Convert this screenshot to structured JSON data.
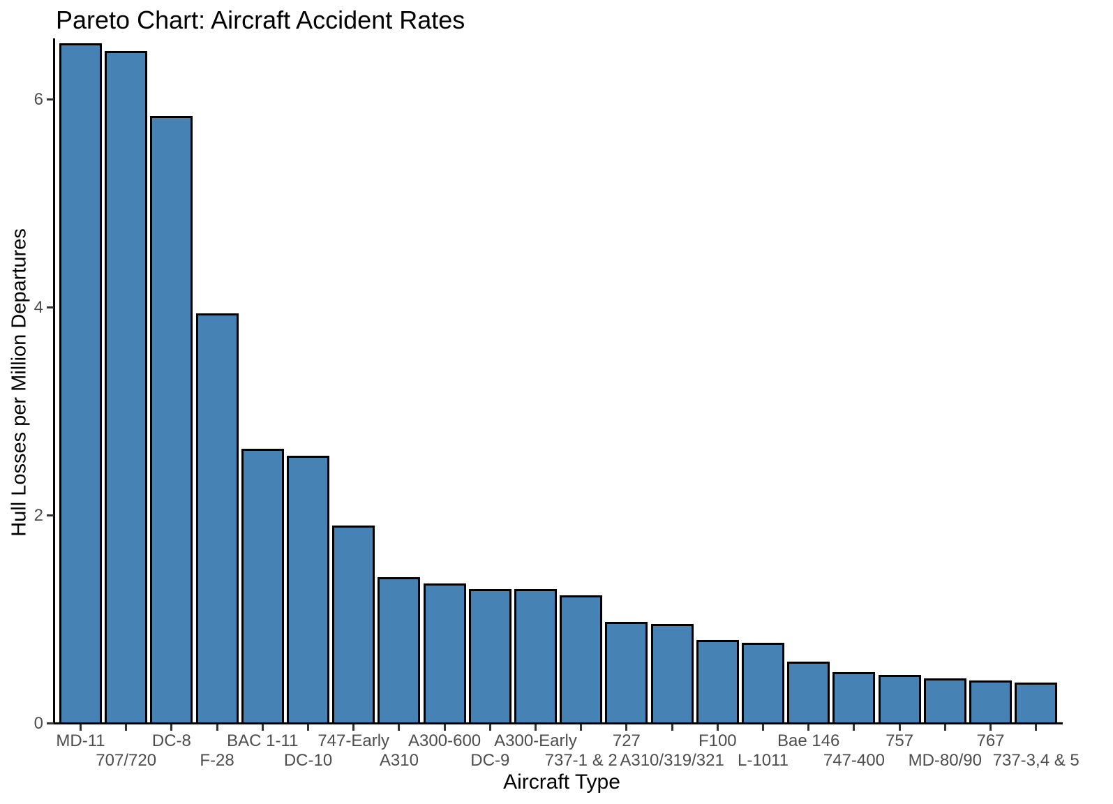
{
  "chart_data": {
    "type": "bar",
    "title": "Pareto Chart: Aircraft Accident Rates",
    "xlabel": "Aircraft Type",
    "ylabel": "Hull Losses per Million Departures",
    "categories": [
      "MD-11",
      "707/720",
      "DC-8",
      "F-28",
      "BAC 1-11",
      "DC-10",
      "747-Early",
      "A310",
      "A300-600",
      "DC-9",
      "A300-Early",
      "737-1 & 2",
      "727",
      "A310/319/321",
      "F100",
      "L-1011",
      "Bae 146",
      "747-400",
      "757",
      "MD-80/90",
      "767",
      "737-3,4 & 5"
    ],
    "values": [
      6.54,
      6.46,
      5.84,
      3.94,
      2.64,
      2.57,
      1.9,
      1.4,
      1.34,
      1.29,
      1.29,
      1.23,
      0.97,
      0.95,
      0.8,
      0.77,
      0.59,
      0.49,
      0.46,
      0.43,
      0.41,
      0.39
    ],
    "ylim": [
      0,
      6.6
    ],
    "yticks": [
      0,
      2,
      4,
      6
    ],
    "grid": false,
    "legend": "none",
    "sort": "descending",
    "x_label_layout": "staggered-two-row",
    "colors": {
      "bar_fill": "#4682B4",
      "bar_stroke": "#000000",
      "axis_line": "#000000",
      "tick_mark": "#333333",
      "tick_label": "#4d4d4d",
      "title_text": "#000000",
      "background": "#ffffff"
    }
  }
}
